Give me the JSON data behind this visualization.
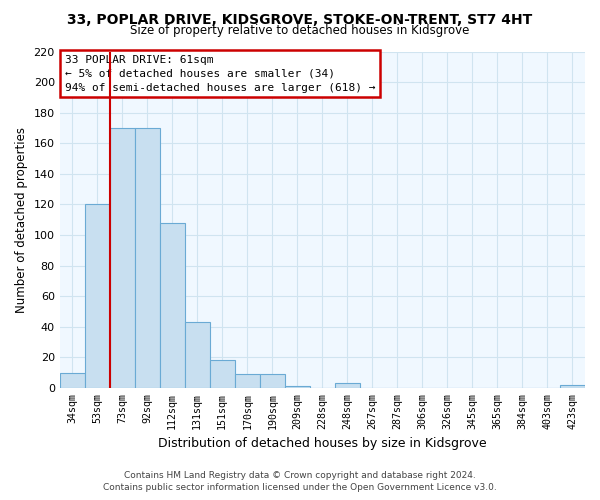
{
  "title": "33, POPLAR DRIVE, KIDSGROVE, STOKE-ON-TRENT, ST7 4HT",
  "subtitle": "Size of property relative to detached houses in Kidsgrove",
  "xlabel": "Distribution of detached houses by size in Kidsgrove",
  "ylabel": "Number of detached properties",
  "bin_labels": [
    "34sqm",
    "53sqm",
    "73sqm",
    "92sqm",
    "112sqm",
    "131sqm",
    "151sqm",
    "170sqm",
    "190sqm",
    "209sqm",
    "228sqm",
    "248sqm",
    "267sqm",
    "287sqm",
    "306sqm",
    "326sqm",
    "345sqm",
    "365sqm",
    "384sqm",
    "403sqm",
    "423sqm"
  ],
  "bar_heights": [
    10,
    120,
    170,
    170,
    108,
    43,
    18,
    9,
    9,
    1,
    0,
    3,
    0,
    0,
    0,
    0,
    0,
    0,
    0,
    0,
    2
  ],
  "bar_color": "#c8dff0",
  "bar_edge_color": "#6aaad4",
  "marker_color": "#cc0000",
  "ylim": [
    0,
    220
  ],
  "yticks": [
    0,
    20,
    40,
    60,
    80,
    100,
    120,
    140,
    160,
    180,
    200,
    220
  ],
  "annotation_title": "33 POPLAR DRIVE: 61sqm",
  "annotation_line1": "← 5% of detached houses are smaller (34)",
  "annotation_line2": "94% of semi-detached houses are larger (618) →",
  "annotation_box_color": "#ffffff",
  "annotation_box_edge": "#cc0000",
  "footer_line1": "Contains HM Land Registry data © Crown copyright and database right 2024.",
  "footer_line2": "Contains public sector information licensed under the Open Government Licence v3.0.",
  "grid_color": "#d0e4f0",
  "bg_color": "#f0f8ff"
}
